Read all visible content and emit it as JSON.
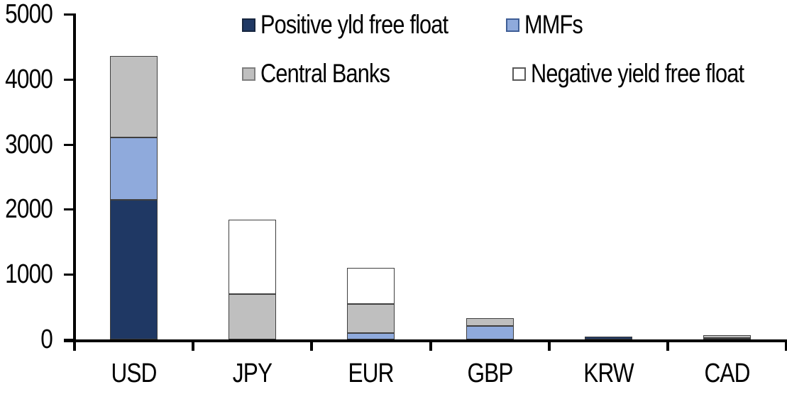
{
  "chart_data": {
    "type": "bar",
    "stacked": true,
    "title": "",
    "xlabel": "",
    "ylabel": "",
    "categories": [
      "USD",
      "JPY",
      "EUR",
      "GBP",
      "KRW",
      "CAD"
    ],
    "series": [
      {
        "name": "Positive yld free float",
        "color": "#1F3864",
        "border_color": "#17263F",
        "values": [
          2150,
          0,
          0,
          0,
          45,
          25
        ]
      },
      {
        "name": "MMFs",
        "color": "#8FAADC",
        "border_color": "#3F5E96",
        "values": [
          950,
          0,
          100,
          210,
          0,
          0
        ]
      },
      {
        "name": "Central Banks",
        "color": "#BFBFBF",
        "border_color": "#7F7F7F",
        "values": [
          1260,
          700,
          440,
          120,
          0,
          40
        ]
      },
      {
        "name": "Negative yield free float",
        "color": "#FFFFFF",
        "border_color": "#595959",
        "values": [
          0,
          1140,
          560,
          0,
          0,
          0
        ]
      }
    ],
    "totals": [
      4360,
      1840,
      1100,
      330,
      45,
      65
    ],
    "ylim": [
      0,
      5000
    ],
    "yticks": [
      0,
      1000,
      2000,
      3000,
      4000,
      5000
    ],
    "grid": false,
    "legend_position": "top",
    "axis_color": "#000000",
    "segment_outline_color": "#3F3F3F",
    "background_color": "#FFFFFF"
  }
}
